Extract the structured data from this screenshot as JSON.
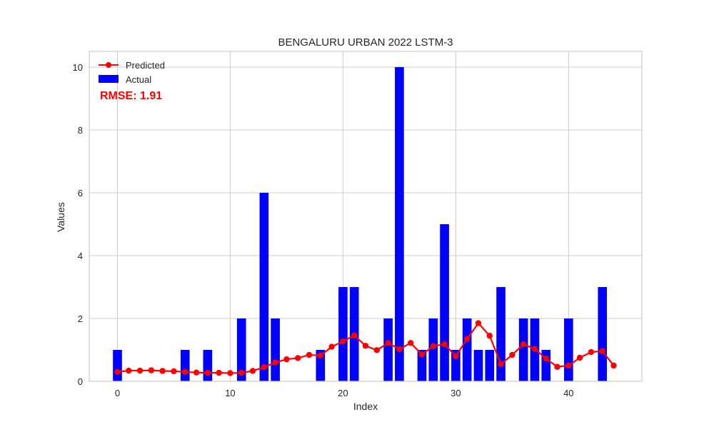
{
  "chart_data": {
    "type": "bar",
    "title": "BENGALURU URBAN 2022 LSTM-3",
    "xlabel": "Index",
    "ylabel": "Values",
    "xlim": [
      -2.5,
      46.5
    ],
    "ylim": [
      0,
      10.5
    ],
    "xticks": [
      0,
      10,
      20,
      30,
      40
    ],
    "yticks": [
      0,
      2,
      4,
      6,
      8,
      10
    ],
    "grid": true,
    "legend_position": "top-left",
    "annotation": "RMSE: 1.91",
    "annotation_color": "#ff0000",
    "series": [
      {
        "name": "Predicted",
        "type": "line",
        "color": "#ff0000",
        "x": [
          0,
          1,
          2,
          3,
          4,
          5,
          6,
          7,
          8,
          9,
          10,
          11,
          12,
          13,
          14,
          15,
          16,
          17,
          18,
          19,
          20,
          21,
          22,
          23,
          24,
          25,
          26,
          27,
          28,
          29,
          30,
          31,
          32,
          33,
          34,
          35,
          36,
          37,
          38,
          39,
          40,
          41,
          42,
          43,
          44
        ],
        "values": [
          0.3,
          0.34,
          0.34,
          0.35,
          0.33,
          0.32,
          0.3,
          0.28,
          0.27,
          0.27,
          0.26,
          0.27,
          0.33,
          0.45,
          0.6,
          0.7,
          0.74,
          0.84,
          0.82,
          1.1,
          1.27,
          1.46,
          1.13,
          0.99,
          1.22,
          1.02,
          1.22,
          0.85,
          1.12,
          1.18,
          0.8,
          1.35,
          1.85,
          1.45,
          0.55,
          0.84,
          1.18,
          1.03,
          0.72,
          0.46,
          0.5,
          0.75,
          0.93,
          0.96,
          0.5
        ]
      },
      {
        "name": "Actual",
        "type": "bar",
        "color": "#0000ff",
        "x": [
          0,
          1,
          2,
          3,
          4,
          5,
          6,
          7,
          8,
          9,
          10,
          11,
          12,
          13,
          14,
          15,
          16,
          17,
          18,
          19,
          20,
          21,
          22,
          23,
          24,
          25,
          26,
          27,
          28,
          29,
          30,
          31,
          32,
          33,
          34,
          35,
          36,
          37,
          38,
          39,
          40,
          41,
          42,
          43,
          44
        ],
        "values": [
          1,
          0,
          0,
          0,
          0,
          0,
          1,
          0,
          1,
          0,
          0,
          2,
          0,
          6,
          2,
          0,
          0,
          0,
          1,
          0,
          3,
          3,
          0,
          0,
          2,
          10,
          0,
          1,
          2,
          5,
          1,
          2,
          1,
          1,
          3,
          0,
          2,
          2,
          1,
          0,
          2,
          0,
          0,
          3,
          0
        ]
      }
    ]
  }
}
